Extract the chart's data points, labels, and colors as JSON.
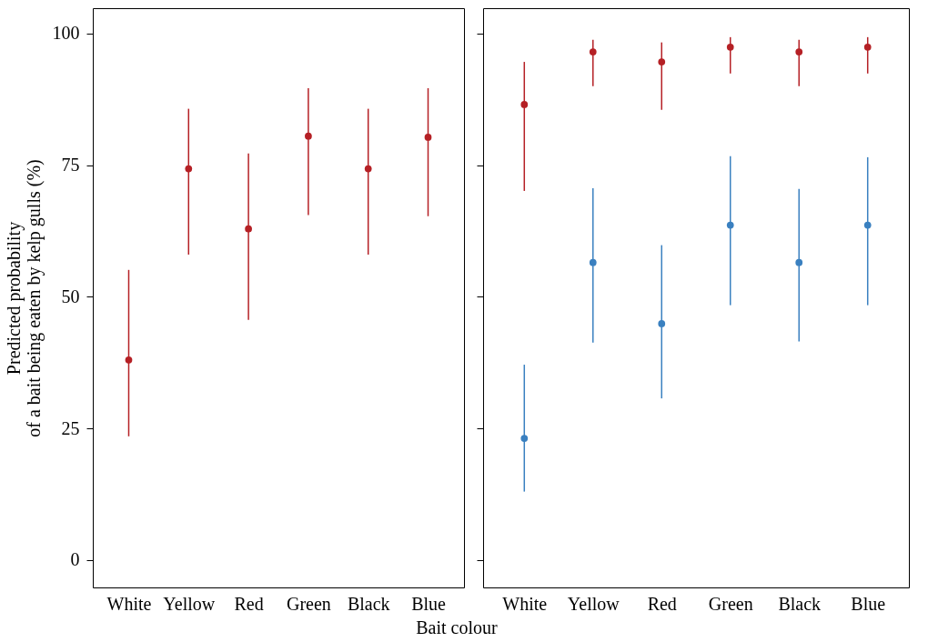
{
  "chart_data": [
    {
      "type": "scatter",
      "xlabel": "Bait colour",
      "ylabel": "Predicted probability\nof a bait being eaten by kelp gulls (%)",
      "categories": [
        "White",
        "Yellow",
        "Red",
        "Green",
        "Black",
        "Blue"
      ],
      "series": [
        {
          "color": "#b52025",
          "values": [
            38.0,
            74.3,
            62.9,
            80.5,
            74.3,
            80.3
          ],
          "errors": [
            [
              23.5,
              55.1
            ],
            [
              58.0,
              85.7
            ],
            [
              45.6,
              77.2
            ],
            [
              65.5,
              89.6
            ],
            [
              58.0,
              85.7
            ],
            [
              65.3,
              89.6
            ]
          ]
        }
      ],
      "ylim": [
        -5.2,
        104.8
      ],
      "yticks": [
        0,
        25,
        50,
        75,
        100
      ],
      "marker": "circle",
      "grid": false
    },
    {
      "type": "scatter",
      "categories": [
        "White",
        "Yellow",
        "Red",
        "Green",
        "Black",
        "Blue"
      ],
      "series": [
        {
          "color": "#b52025",
          "values": [
            86.5,
            96.5,
            94.6,
            97.4,
            96.5,
            97.4
          ],
          "errors": [
            [
              70.1,
              94.6
            ],
            [
              90.0,
              98.8
            ],
            [
              85.5,
              98.3
            ],
            [
              92.4,
              99.3
            ],
            [
              90.0,
              98.8
            ],
            [
              92.4,
              99.3
            ]
          ]
        },
        {
          "color": "#3a80c0",
          "values": [
            23.1,
            56.5,
            44.9,
            63.6,
            56.5,
            63.6
          ],
          "errors": [
            [
              13.0,
              37.1
            ],
            [
              41.3,
              70.6
            ],
            [
              30.7,
              59.8
            ],
            [
              48.4,
              76.7
            ],
            [
              41.5,
              70.5
            ],
            [
              48.4,
              76.5
            ]
          ]
        }
      ],
      "ylim": [
        -5.2,
        104.8
      ],
      "yticks": [
        0,
        25,
        50,
        75,
        100
      ],
      "tick_labels": "x",
      "marker": "circle",
      "grid": false
    }
  ]
}
